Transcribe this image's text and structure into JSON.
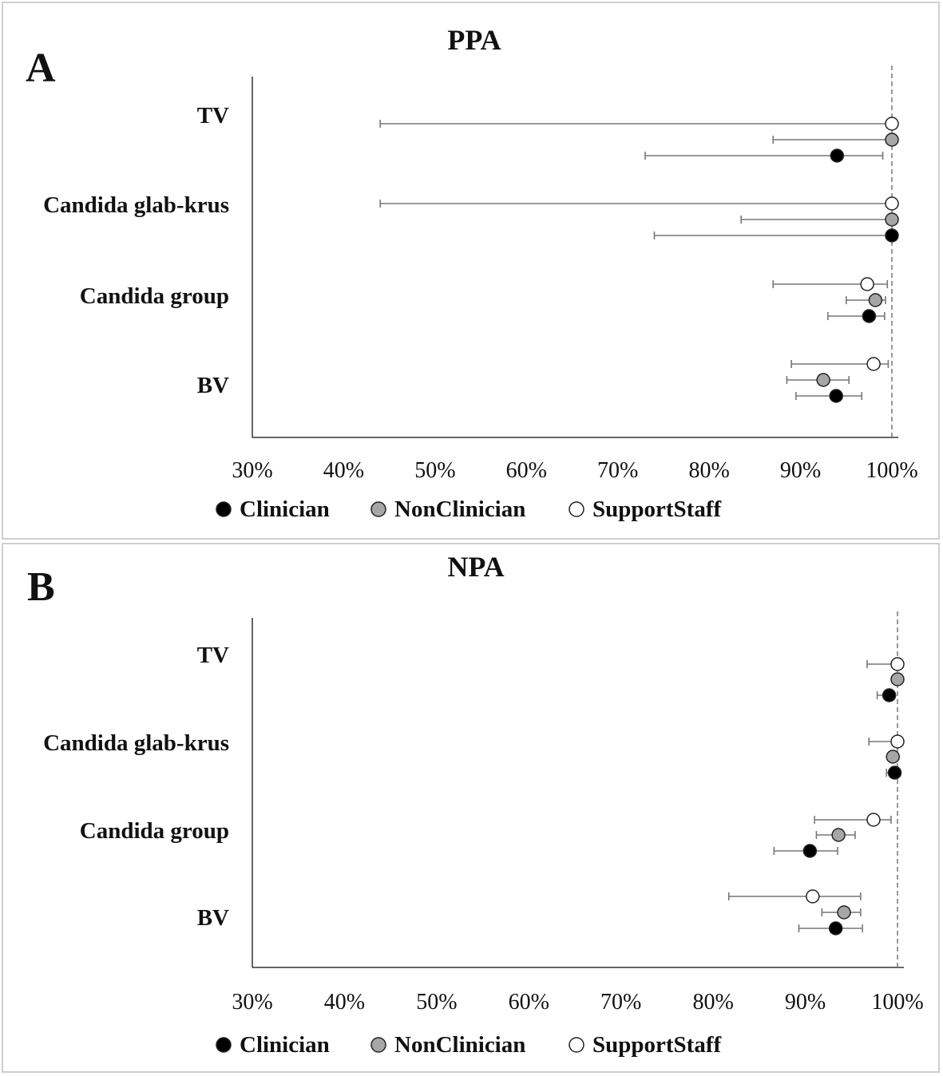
{
  "chart_data": [
    {
      "type": "scatter",
      "panel_letter": "A",
      "title": "PPA",
      "categories": [
        "TV",
        "Candida glab-krus",
        "Candida group",
        "BV"
      ],
      "x_ticks": [
        "30%",
        "40%",
        "50%",
        "60%",
        "70%",
        "80%",
        "90%",
        "100%"
      ],
      "xlim": [
        30,
        100
      ],
      "reference_line": 100,
      "legend_placement": "bottom",
      "series": [
        {
          "name": "Clinician",
          "fill": "#000000",
          "points": [
            {
              "category": "TV",
              "value": 94.0,
              "ci": [
                73.0,
                99.0
              ]
            },
            {
              "category": "Candida glab-krus",
              "value": 100,
              "ci": [
                74.0,
                100
              ]
            },
            {
              "category": "Candida group",
              "value": 97.5,
              "ci": [
                93.0,
                99.2
              ]
            },
            {
              "category": "BV",
              "value": 93.9,
              "ci": [
                89.5,
                96.7
              ]
            }
          ]
        },
        {
          "name": "NonClinician",
          "fill": "#a6a6a6",
          "points": [
            {
              "category": "TV",
              "value": 100,
              "ci": [
                87.0,
                100
              ]
            },
            {
              "category": "Candida glab-krus",
              "value": 100,
              "ci": [
                83.5,
                100
              ]
            },
            {
              "category": "Candida group",
              "value": 98.2,
              "ci": [
                95.0,
                99.3
              ]
            },
            {
              "category": "BV",
              "value": 92.5,
              "ci": [
                88.5,
                95.3
              ]
            }
          ]
        },
        {
          "name": "SupportStaff",
          "fill": "#ffffff",
          "points": [
            {
              "category": "TV",
              "value": 100,
              "ci": [
                44.0,
                100
              ]
            },
            {
              "category": "Candida glab-krus",
              "value": 100,
              "ci": [
                44.0,
                100
              ]
            },
            {
              "category": "Candida group",
              "value": 97.3,
              "ci": [
                87.0,
                99.5
              ]
            },
            {
              "category": "BV",
              "value": 98.0,
              "ci": [
                89.0,
                99.6
              ]
            }
          ]
        }
      ]
    },
    {
      "type": "scatter",
      "panel_letter": "B",
      "title": "NPA",
      "categories": [
        "TV",
        "Candida glab-krus",
        "Candida group",
        "BV"
      ],
      "x_ticks": [
        "30%",
        "40%",
        "50%",
        "60%",
        "70%",
        "80%",
        "90%",
        "100%"
      ],
      "xlim": [
        30,
        100
      ],
      "reference_line": 100,
      "legend_placement": "bottom",
      "series": [
        {
          "name": "Clinician",
          "fill": "#000000",
          "points": [
            {
              "category": "TV",
              "value": 99.1,
              "ci": [
                97.8,
                99.7
              ]
            },
            {
              "category": "Candida glab-krus",
              "value": 99.7,
              "ci": [
                98.8,
                100
              ]
            },
            {
              "category": "Candida group",
              "value": 90.5,
              "ci": [
                86.6,
                93.5
              ]
            },
            {
              "category": "BV",
              "value": 93.3,
              "ci": [
                89.3,
                96.2
              ]
            }
          ]
        },
        {
          "name": "NonClinician",
          "fill": "#a6a6a6",
          "points": [
            {
              "category": "TV",
              "value": 100,
              "ci": [
                100,
                100
              ]
            },
            {
              "category": "Candida glab-krus",
              "value": 99.5,
              "ci": [
                99.0,
                100
              ]
            },
            {
              "category": "Candida group",
              "value": 93.6,
              "ci": [
                91.2,
                95.4
              ]
            },
            {
              "category": "BV",
              "value": 94.2,
              "ci": [
                91.8,
                96.0
              ]
            }
          ]
        },
        {
          "name": "SupportStaff",
          "fill": "#ffffff",
          "points": [
            {
              "category": "TV",
              "value": 100,
              "ci": [
                96.7,
                100
              ]
            },
            {
              "category": "Candida glab-krus",
              "value": 100,
              "ci": [
                96.9,
                100
              ]
            },
            {
              "category": "Candida group",
              "value": 97.4,
              "ci": [
                91.0,
                99.3
              ]
            },
            {
              "category": "BV",
              "value": 90.8,
              "ci": [
                81.7,
                96.0
              ]
            }
          ]
        }
      ]
    }
  ]
}
